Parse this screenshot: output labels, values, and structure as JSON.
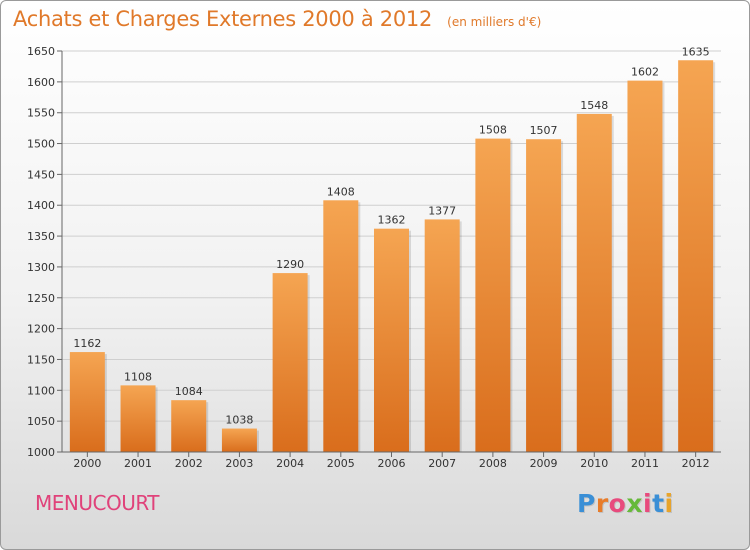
{
  "header": {
    "title": "Achats et Charges Externes 2000 à 2012",
    "unit": "(en milliers d'€)"
  },
  "footer": {
    "place": "MENUCOURT",
    "logo_letters": [
      "P",
      "r",
      "o",
      "x",
      "i",
      "t",
      "i"
    ],
    "logo_colors": [
      "#3a8fd6",
      "#e87c2a",
      "#e84a7d",
      "#66b93a",
      "#e84a7d",
      "#3a8fd6",
      "#e8a42a"
    ]
  },
  "colors": {
    "bar_light": "#f5a552",
    "bar_dark": "#d96d1c",
    "grid": "#cfcfcf",
    "axis_text": "#333333",
    "title": "#e0792a",
    "place": "#e0427a"
  },
  "chart_data": {
    "type": "bar",
    "title": "Achats et Charges Externes 2000 à 2012",
    "categories": [
      "2000",
      "2001",
      "2002",
      "2003",
      "2004",
      "2005",
      "2006",
      "2007",
      "2008",
      "2009",
      "2010",
      "2011",
      "2012"
    ],
    "values": [
      1162,
      1108,
      1084,
      1038,
      1290,
      1408,
      1362,
      1377,
      1508,
      1507,
      1548,
      1602,
      1635
    ],
    "ylim": [
      1000,
      1650
    ],
    "yticks": [
      1000,
      1050,
      1100,
      1150,
      1200,
      1250,
      1300,
      1350,
      1400,
      1450,
      1500,
      1550,
      1600,
      1650
    ],
    "grid": true,
    "data_labels": true
  }
}
